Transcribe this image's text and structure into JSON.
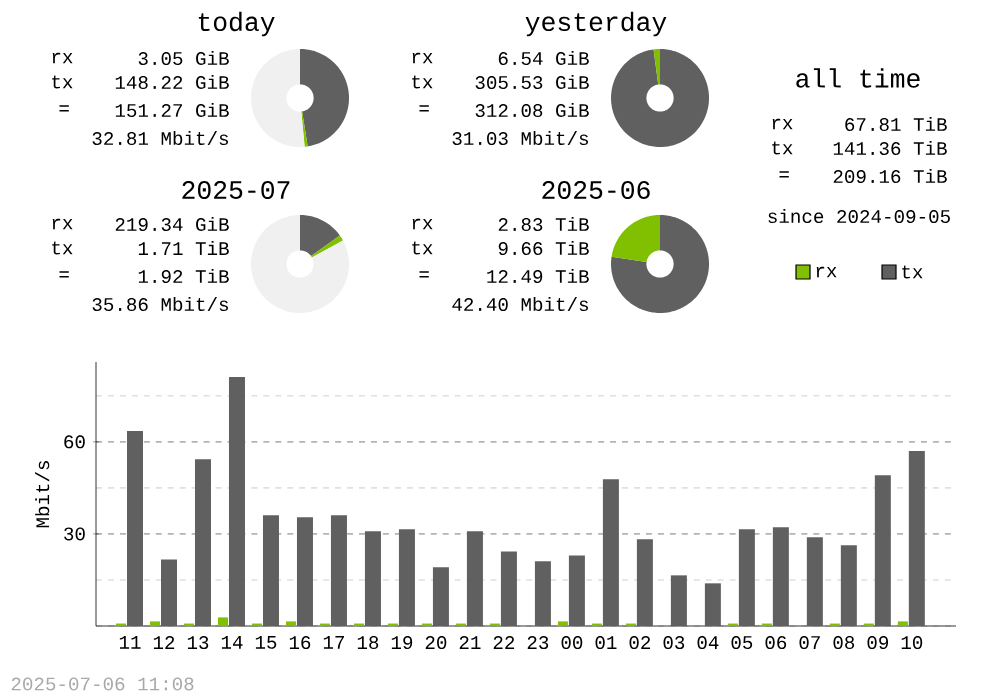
{
  "chart_data": [
    {
      "type": "donut",
      "title": "today",
      "categories": [
        null,
        null,
        null
      ],
      "values": [
        47.5,
        1,
        51.5
      ],
      "colors": [
        "#606060",
        "#80c000",
        "#f0f0f0"
      ],
      "annotations": [
        "rx",
        "3.05 GiB",
        "tx",
        "148.22 GiB",
        "=",
        "151.27 GiB",
        "32.81 Mbit/s"
      ]
    },
    {
      "type": "donut",
      "title": "yesterday",
      "categories": [
        null,
        null
      ],
      "values": [
        97.9,
        2.1
      ],
      "colors": [
        "#606060",
        "#80c000"
      ],
      "annotations": [
        "rx",
        "6.54 GiB",
        "tx",
        "305.53 GiB",
        "=",
        "312.08 GiB",
        "31.03 Mbit/s"
      ]
    },
    {
      "type": "other",
      "title": "all time",
      "annotations": [
        "rx",
        "67.81 TiB",
        "tx",
        "141.36 TiB",
        "=",
        "209.16 TiB",
        "since 2024-09-05"
      ]
    },
    {
      "type": "donut",
      "title": "2025-07",
      "categories": [
        null,
        null,
        null
      ],
      "values": [
        15.1,
        1.9,
        83
      ],
      "colors": [
        "#606060",
        "#80c000",
        "#f0f0f0"
      ],
      "annotations": [
        "rx",
        "219.34 GiB",
        "tx",
        "1.71 TiB",
        "=",
        "1.92 TiB",
        "35.86 Mbit/s"
      ]
    },
    {
      "type": "donut",
      "title": "2025-06",
      "categories": [
        null,
        null
      ],
      "values": [
        77.4,
        22.6
      ],
      "colors": [
        "#606060",
        "#80c000"
      ],
      "annotations": [
        "rx",
        "2.83 TiB",
        "tx",
        "9.66 TiB",
        "=",
        "12.49 TiB",
        "42.40 Mbit/s"
      ]
    },
    {
      "type": "bar",
      "ylabel": "Mbit/s",
      "categories": [
        "11",
        "12",
        "13",
        "14",
        "15",
        "16",
        "17",
        "18",
        "19",
        "20",
        "21",
        "22",
        "23",
        "00",
        "01",
        "02",
        "03",
        "04",
        "05",
        "06",
        "07",
        "08",
        "09",
        "10"
      ],
      "series": [
        {
          "name": "rx",
          "color": "#80c000",
          "values": [
            0.8,
            1.5,
            0.8,
            2.8,
            0.8,
            1.5,
            0.8,
            0.8,
            0.8,
            0.8,
            0.8,
            0.8,
            0,
            1.5,
            0.8,
            0.8,
            0,
            0,
            0.8,
            0.8,
            0,
            0.8,
            0.8,
            1.5
          ]
        },
        {
          "name": "tx",
          "color": "#606060",
          "values": [
            63.5,
            21.7,
            54.3,
            81.1,
            36.1,
            35.4,
            36.1,
            30.9,
            31.5,
            19.1,
            30.9,
            24.3,
            21.1,
            23.0,
            47.8,
            28.3,
            16.5,
            13.9,
            31.5,
            32.2,
            28.9,
            26.3,
            49.1,
            57.0
          ]
        }
      ],
      "ylim": [
        0,
        86
      ],
      "yticks": [
        {
          "value": 0,
          "label": null
        },
        {
          "value": 15,
          "label": null
        },
        30,
        {
          "value": 45,
          "label": null
        },
        60,
        {
          "value": 75,
          "label": null
        }
      ],
      "grid": "y",
      "legend": "top right",
      "annotations": [
        "2025-07-06 11:08"
      ]
    }
  ]
}
